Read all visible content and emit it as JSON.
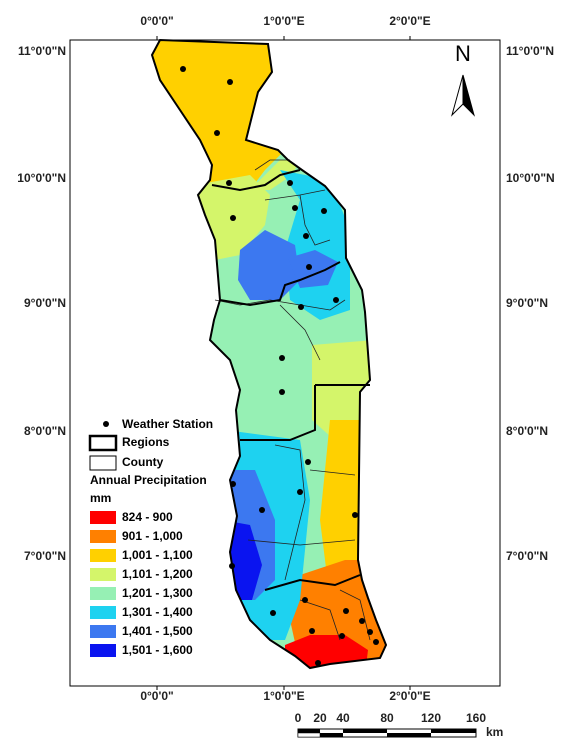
{
  "longitude_labels": [
    "0°0'0\"",
    "1°0'0\"E",
    "2°0'0\"E"
  ],
  "latitude_labels": [
    "11°0'0\"N",
    "10°0'0\"N",
    "9°0'0\"N",
    "8°0'0\"N",
    "7°0'0\"N"
  ],
  "north_label": "N",
  "legend": {
    "station": "Weather Station",
    "regions": "Regions",
    "county": "County",
    "title": "Annual Precipitation",
    "unit": "mm",
    "classes": [
      {
        "label": "824 - 900",
        "color": "#ff0000"
      },
      {
        "label": "901 - 1,000",
        "color": "#ff8000"
      },
      {
        "label": "1,001 - 1,100",
        "color": "#ffd000"
      },
      {
        "label": "1,101 - 1,200",
        "color": "#d4f56a"
      },
      {
        "label": "1,201 - 1,300",
        "color": "#96f0b4"
      },
      {
        "label": "1,301 - 1,400",
        "color": "#1ed2f0"
      },
      {
        "label": "1,401 - 1,500",
        "color": "#3c78f0"
      },
      {
        "label": "1,501 - 1,600",
        "color": "#0a14f0"
      }
    ]
  },
  "scale_bar": {
    "labels": [
      "0",
      "20",
      "40",
      "80",
      "120",
      "160"
    ],
    "unit": "km"
  }
}
